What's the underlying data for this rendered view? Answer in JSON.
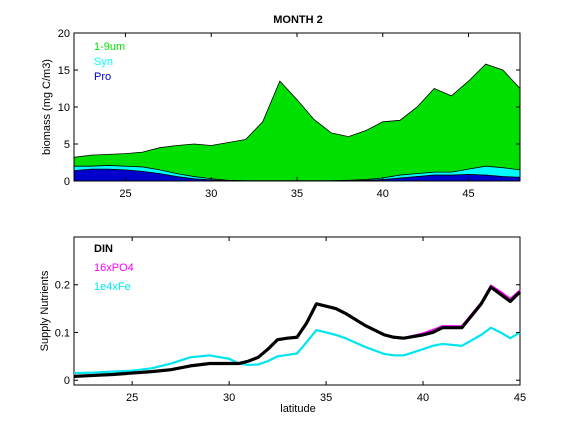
{
  "chart_data": [
    {
      "type": "area",
      "title": "MONTH 2",
      "xlabel": "",
      "ylabel": "biomass (mg C/m3)",
      "xlim": [
        22,
        48
      ],
      "ylim": [
        0,
        20
      ],
      "xticks": [
        25,
        30,
        35,
        40,
        45
      ],
      "yticks": [
        0,
        5,
        10,
        15,
        20
      ],
      "legend_position": "top-left",
      "x": [
        22,
        23,
        24,
        25,
        26,
        27,
        28,
        29,
        30,
        31,
        32,
        33,
        34,
        35,
        36,
        37,
        38,
        39,
        40,
        41,
        42,
        43,
        44,
        45,
        46,
        47,
        48
      ],
      "series": [
        {
          "name": "1-9um",
          "color": "#00e000",
          "stacked_total": [
            3.2,
            3.5,
            3.6,
            3.7,
            3.9,
            4.5,
            4.8,
            5.0,
            4.8,
            5.2,
            5.6,
            8.0,
            13.5,
            11.0,
            8.3,
            6.5,
            6.0,
            6.8,
            8.0,
            8.2,
            10.0,
            12.5,
            11.5,
            13.5,
            15.8,
            15.0,
            12.5
          ]
        },
        {
          "name": "Syn",
          "color": "#00ffff",
          "stacked_total": [
            2.0,
            2.0,
            2.1,
            2.0,
            1.9,
            1.5,
            1.0,
            0.6,
            0.3,
            0.1,
            0.05,
            0.05,
            0.05,
            0.05,
            0.05,
            0.05,
            0.1,
            0.2,
            0.4,
            0.8,
            1.0,
            1.2,
            1.2,
            1.6,
            2.0,
            1.8,
            1.5
          ]
        },
        {
          "name": "Pro",
          "color": "#0000cc",
          "stacked_total": [
            1.4,
            1.6,
            1.6,
            1.5,
            1.3,
            1.0,
            0.6,
            0.3,
            0.15,
            0.05,
            0.02,
            0.02,
            0.02,
            0.02,
            0.02,
            0.02,
            0.05,
            0.1,
            0.2,
            0.4,
            0.6,
            0.8,
            0.8,
            0.9,
            0.8,
            0.6,
            0.5
          ]
        }
      ]
    },
    {
      "type": "line",
      "title": "",
      "xlabel": "latitude",
      "ylabel": "Supply Nutrients",
      "xlim": [
        22,
        45
      ],
      "ylim": [
        -0.01,
        0.3
      ],
      "xticks": [
        25,
        30,
        35,
        40,
        45
      ],
      "yticks": [
        0,
        0.1,
        0.2
      ],
      "ytick_labels": [
        "0",
        "0.1",
        "0.2"
      ],
      "legend_position": "top-left",
      "x": [
        22,
        23,
        24,
        25,
        26,
        27,
        28,
        29,
        30,
        30.5,
        31,
        31.5,
        32,
        32.5,
        33,
        33.5,
        34,
        34.5,
        35,
        35.5,
        36,
        37,
        38,
        38.5,
        39,
        40,
        40.5,
        41,
        41.5,
        42,
        43,
        43.5,
        44,
        44.5,
        45
      ],
      "series": [
        {
          "name": "DIN",
          "color": "#000000",
          "values": [
            0.008,
            0.01,
            0.012,
            0.015,
            0.018,
            0.022,
            0.03,
            0.035,
            0.035,
            0.035,
            0.04,
            0.048,
            0.065,
            0.085,
            0.088,
            0.09,
            0.12,
            0.16,
            0.155,
            0.15,
            0.14,
            0.115,
            0.095,
            0.09,
            0.088,
            0.095,
            0.1,
            0.11,
            0.11,
            0.11,
            0.16,
            0.195,
            0.18,
            0.165,
            0.185
          ]
        },
        {
          "name": "16xPO4",
          "color": "#ff00ff",
          "values": [
            0.008,
            0.01,
            0.012,
            0.015,
            0.018,
            0.022,
            0.03,
            0.035,
            0.035,
            0.035,
            0.04,
            0.048,
            0.065,
            0.085,
            0.088,
            0.09,
            0.12,
            0.16,
            0.155,
            0.15,
            0.14,
            0.115,
            0.095,
            0.09,
            0.088,
            0.098,
            0.105,
            0.113,
            0.113,
            0.113,
            0.162,
            0.198,
            0.185,
            0.17,
            0.188
          ]
        },
        {
          "name": "1e4xFe",
          "color": "#00e5ee",
          "values": [
            0.015,
            0.016,
            0.018,
            0.02,
            0.025,
            0.035,
            0.048,
            0.052,
            0.045,
            0.035,
            0.032,
            0.033,
            0.04,
            0.05,
            0.053,
            0.056,
            0.08,
            0.105,
            0.1,
            0.095,
            0.088,
            0.07,
            0.055,
            0.052,
            0.052,
            0.065,
            0.072,
            0.076,
            0.074,
            0.072,
            0.095,
            0.11,
            0.1,
            0.088,
            0.1
          ]
        }
      ]
    }
  ]
}
